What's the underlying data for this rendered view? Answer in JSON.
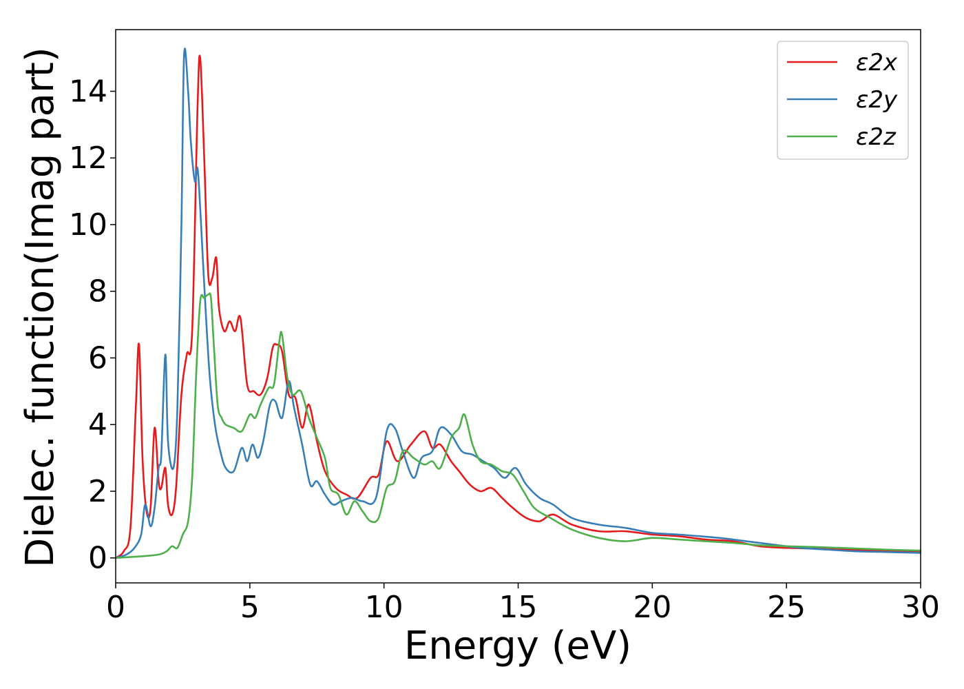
{
  "chart_data": {
    "type": "line",
    "xlabel": "Energy (eV)",
    "ylabel": "Dielec. function(Imag part)",
    "xlim": [
      0,
      30
    ],
    "ylim": [
      -0.75,
      15.85
    ],
    "xticks": [
      0,
      5,
      10,
      15,
      20,
      25,
      30
    ],
    "yticks": [
      0,
      2,
      4,
      6,
      8,
      10,
      12,
      14
    ],
    "grid": false,
    "legend_position": "top-right",
    "series": [
      {
        "name": "ε2x",
        "color": "#e41a1c",
        "x": [
          0,
          0.3,
          0.55,
          0.75,
          0.87,
          1.0,
          1.15,
          1.3,
          1.45,
          1.6,
          1.7,
          1.85,
          1.95,
          2.1,
          2.25,
          2.45,
          2.65,
          2.85,
          3.05,
          3.15,
          3.3,
          3.45,
          3.6,
          3.75,
          3.85,
          4.05,
          4.25,
          4.45,
          4.65,
          4.9,
          5.15,
          5.4,
          5.65,
          5.85,
          6.0,
          6.2,
          6.45,
          6.7,
          6.95,
          7.2,
          7.5,
          7.8,
          8.2,
          8.6,
          9.0,
          9.5,
          9.8,
          10.1,
          10.5,
          11.0,
          11.5,
          11.8,
          12.1,
          12.5,
          12.8,
          13.2,
          13.6,
          14.0,
          14.4,
          14.8,
          15.3,
          15.8,
          16.3,
          17.0,
          18.0,
          19.0,
          20.0,
          21.0,
          22.0,
          23.0,
          24.0,
          25.0,
          26.0,
          27.0,
          28.0,
          29.0,
          30.0
        ],
        "values": [
          0.0,
          0.2,
          0.9,
          4.5,
          6.4,
          3.0,
          1.4,
          1.5,
          3.9,
          2.3,
          2.1,
          2.7,
          1.6,
          1.3,
          2.1,
          4.9,
          6.1,
          6.8,
          13.5,
          15.0,
          12.0,
          8.5,
          8.4,
          9.0,
          7.5,
          6.8,
          7.1,
          6.8,
          7.2,
          5.2,
          5.0,
          4.9,
          5.4,
          6.3,
          6.4,
          6.2,
          4.9,
          4.8,
          3.9,
          4.6,
          3.5,
          2.6,
          2.1,
          1.9,
          1.8,
          2.4,
          2.5,
          3.5,
          2.9,
          3.4,
          3.8,
          3.3,
          3.4,
          2.9,
          2.6,
          2.2,
          2.0,
          2.1,
          1.8,
          1.5,
          1.2,
          1.1,
          1.3,
          1.0,
          0.8,
          0.8,
          0.7,
          0.65,
          0.55,
          0.5,
          0.35,
          0.3,
          0.28,
          0.25,
          0.22,
          0.2,
          0.18
        ]
      },
      {
        "name": "ε2y",
        "color": "#377eb8",
        "x": [
          0,
          0.4,
          0.7,
          0.95,
          1.1,
          1.3,
          1.45,
          1.6,
          1.7,
          1.85,
          1.95,
          2.15,
          2.3,
          2.45,
          2.55,
          2.7,
          2.8,
          2.95,
          3.05,
          3.15,
          3.3,
          3.5,
          3.7,
          3.9,
          4.1,
          4.4,
          4.7,
          4.9,
          5.1,
          5.3,
          5.5,
          5.75,
          5.95,
          6.2,
          6.45,
          6.65,
          6.95,
          7.25,
          7.5,
          7.8,
          8.1,
          8.4,
          8.8,
          9.2,
          9.7,
          10.1,
          10.4,
          10.7,
          11.1,
          11.4,
          11.8,
          12.1,
          12.5,
          12.9,
          13.3,
          13.7,
          14.1,
          14.5,
          14.9,
          15.3,
          15.8,
          16.3,
          17.0,
          18.0,
          19.0,
          20.0,
          21.0,
          22.5,
          23.5,
          24.5,
          25.5,
          26.5,
          27.5,
          28.5,
          30.0
        ],
        "values": [
          0.0,
          0.1,
          0.3,
          0.7,
          1.6,
          0.95,
          1.5,
          2.7,
          3.1,
          6.1,
          3.5,
          2.7,
          4.5,
          10.0,
          15.1,
          14.0,
          12.5,
          11.3,
          11.7,
          10.5,
          8.2,
          5.5,
          4.0,
          3.2,
          2.7,
          2.6,
          3.3,
          2.9,
          3.4,
          3.0,
          3.5,
          4.6,
          4.7,
          4.2,
          5.3,
          4.5,
          3.4,
          2.2,
          2.3,
          1.9,
          1.6,
          1.7,
          1.8,
          1.7,
          1.8,
          3.8,
          3.9,
          3.2,
          2.4,
          3.0,
          3.2,
          3.9,
          3.7,
          3.2,
          3.1,
          2.9,
          2.7,
          2.4,
          2.7,
          2.2,
          1.8,
          1.6,
          1.2,
          1.0,
          0.9,
          0.75,
          0.7,
          0.6,
          0.5,
          0.4,
          0.3,
          0.25,
          0.2,
          0.18,
          0.15
        ]
      },
      {
        "name": "ε2z",
        "color": "#4daf4a",
        "x": [
          0,
          1.0,
          1.6,
          1.9,
          2.1,
          2.3,
          2.5,
          2.7,
          2.85,
          3.0,
          3.15,
          3.3,
          3.45,
          3.55,
          3.65,
          3.8,
          3.95,
          4.1,
          4.4,
          4.7,
          5.0,
          5.2,
          5.4,
          5.7,
          5.9,
          6.1,
          6.2,
          6.4,
          6.6,
          6.9,
          7.2,
          7.5,
          7.8,
          8.0,
          8.3,
          8.6,
          8.9,
          9.2,
          9.5,
          9.8,
          10.1,
          10.4,
          10.7,
          11.1,
          11.5,
          11.8,
          12.1,
          12.5,
          12.8,
          13.0,
          13.3,
          13.6,
          14.0,
          14.4,
          14.8,
          15.2,
          15.6,
          16.2,
          17.0,
          18.0,
          19.0,
          20.0,
          21.0,
          22.0,
          23.0,
          24.0,
          25.0,
          26.0,
          27.0,
          28.0,
          29.0,
          30.0
        ],
        "values": [
          0.0,
          0.05,
          0.1,
          0.2,
          0.35,
          0.3,
          0.7,
          1.1,
          2.4,
          5.5,
          7.7,
          7.8,
          7.9,
          7.8,
          6.5,
          4.6,
          4.2,
          4.0,
          3.9,
          3.8,
          4.3,
          4.2,
          4.6,
          5.1,
          5.2,
          6.5,
          6.7,
          5.4,
          4.9,
          5.0,
          4.2,
          3.6,
          3.0,
          2.1,
          1.9,
          1.3,
          1.7,
          1.4,
          1.1,
          1.2,
          2.1,
          2.3,
          3.2,
          3.0,
          2.8,
          2.9,
          2.7,
          3.6,
          3.9,
          4.3,
          3.4,
          2.9,
          2.8,
          2.6,
          2.5,
          2.0,
          1.5,
          1.2,
          0.85,
          0.6,
          0.5,
          0.6,
          0.55,
          0.5,
          0.45,
          0.38,
          0.35,
          0.33,
          0.3,
          0.27,
          0.24,
          0.22
        ]
      }
    ]
  }
}
